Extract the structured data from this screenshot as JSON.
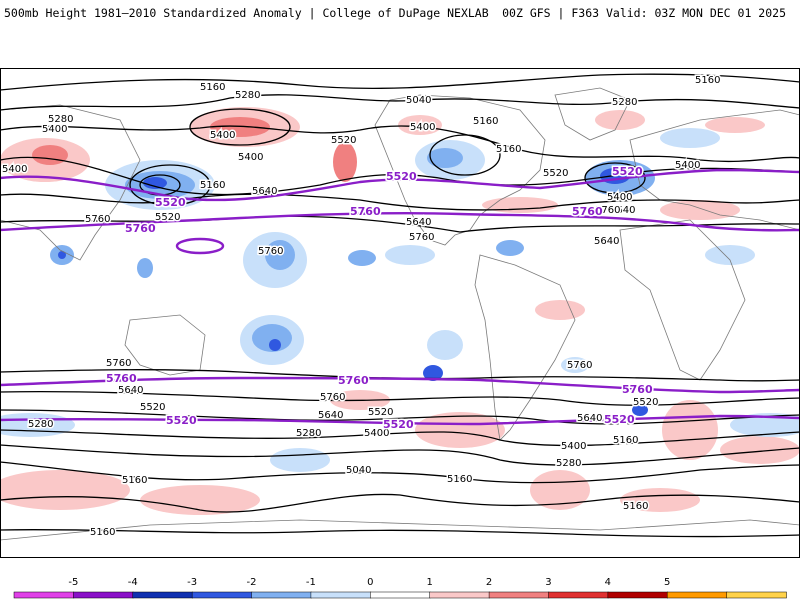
{
  "header": {
    "title": "500mb Height 1981–2010 Standardized Anomaly | College of DuPage NEXLAB",
    "run_info": "00Z GFS | F363 Valid: 03Z MON DEC 01 2025"
  },
  "map": {
    "contour_labels_black": [
      {
        "id": "c5160-n1",
        "text": "5160"
      },
      {
        "id": "c5280-n1",
        "text": "5280"
      },
      {
        "id": "c5280-n2",
        "text": "5280"
      },
      {
        "id": "c5400-n1",
        "text": "5400"
      },
      {
        "id": "c5400-n2",
        "text": "5400"
      },
      {
        "id": "c5400-n3",
        "text": "5400"
      },
      {
        "id": "c5040-n1",
        "text": "5040"
      },
      {
        "id": "c5160-n2",
        "text": "5160"
      },
      {
        "id": "c5160-n3",
        "text": "5160"
      },
      {
        "id": "c5520-n1",
        "text": "5520"
      },
      {
        "id": "c5400-n4",
        "text": "5400"
      },
      {
        "id": "c5160-n4",
        "text": "5160"
      },
      {
        "id": "c5280-n3",
        "text": "5280"
      },
      {
        "id": "c5400-n5",
        "text": "5400"
      },
      {
        "id": "c5520-n2",
        "text": "5520"
      },
      {
        "id": "c5640-n1",
        "text": "5640"
      },
      {
        "id": "c5640-n2",
        "text": "5640"
      },
      {
        "id": "c5640-n3",
        "text": "5640"
      },
      {
        "id": "c5400-n6",
        "text": "5400"
      },
      {
        "id": "c5400-n7",
        "text": "5400"
      },
      {
        "id": "c5520-n3",
        "text": "5520"
      },
      {
        "id": "c5160-n5",
        "text": "5160"
      },
      {
        "id": "c5760-n1",
        "text": "5760"
      },
      {
        "id": "c5760-n2",
        "text": "5760"
      },
      {
        "id": "c5760-n3",
        "text": "5760"
      },
      {
        "id": "c5640-n4",
        "text": "5640"
      },
      {
        "id": "c5760-n4",
        "text": "5760"
      },
      {
        "id": "c5760-s1",
        "text": "5760"
      },
      {
        "id": "c5640-s1",
        "text": "5640"
      },
      {
        "id": "c5520-s1",
        "text": "5520"
      },
      {
        "id": "c5760-s2",
        "text": "5760"
      },
      {
        "id": "c5640-s2",
        "text": "5640"
      },
      {
        "id": "c5520-s2",
        "text": "5520"
      },
      {
        "id": "c5400-s1",
        "text": "5400"
      },
      {
        "id": "c5280-s1",
        "text": "5280"
      },
      {
        "id": "c5280-s2",
        "text": "5280"
      },
      {
        "id": "c5160-s1",
        "text": "5160"
      },
      {
        "id": "c5040-s1",
        "text": "5040"
      },
      {
        "id": "c5160-s2",
        "text": "5160"
      },
      {
        "id": "c5760-s3",
        "text": "5760"
      },
      {
        "id": "c5640-s3",
        "text": "5640"
      },
      {
        "id": "c5520-s3",
        "text": "5520"
      },
      {
        "id": "c5400-s2",
        "text": "5400"
      },
      {
        "id": "c5160-s3",
        "text": "5160"
      },
      {
        "id": "c5280-s3",
        "text": "5280"
      },
      {
        "id": "c5160-s4",
        "text": "5160"
      },
      {
        "id": "c5160-s5",
        "text": "5160"
      }
    ],
    "contour_labels_purple": [
      {
        "id": "p5520-n1",
        "text": "5520"
      },
      {
        "id": "p5520-n2",
        "text": "5520"
      },
      {
        "id": "p5520-n3",
        "text": "5520"
      },
      {
        "id": "p5760-n1",
        "text": "5760"
      },
      {
        "id": "p5760-n2",
        "text": "5760"
      },
      {
        "id": "p5760-n3",
        "text": "5760"
      },
      {
        "id": "p5760-s1",
        "text": "5760"
      },
      {
        "id": "p5760-s2",
        "text": "5760"
      },
      {
        "id": "p5760-s3",
        "text": "5760"
      },
      {
        "id": "p5520-s1",
        "text": "5520"
      },
      {
        "id": "p5520-s2",
        "text": "5520"
      },
      {
        "id": "p5520-s3",
        "text": "5520"
      }
    ]
  },
  "colorbar": {
    "ticks": [
      -5,
      -4,
      -3,
      -2,
      -1,
      0,
      1,
      2,
      3,
      4,
      5
    ],
    "colors": [
      "#e040e8",
      "#8a10c8",
      "#1030b0",
      "#3058e0",
      "#80b0f0",
      "#c8e0fa",
      "#ffffff",
      "#fac8c8",
      "#f08080",
      "#e03030",
      "#b00000",
      "#ff9a00",
      "#ffd24a"
    ]
  },
  "colors": {
    "purple_contour": "#8a1ec8",
    "black_contour": "#000000"
  }
}
